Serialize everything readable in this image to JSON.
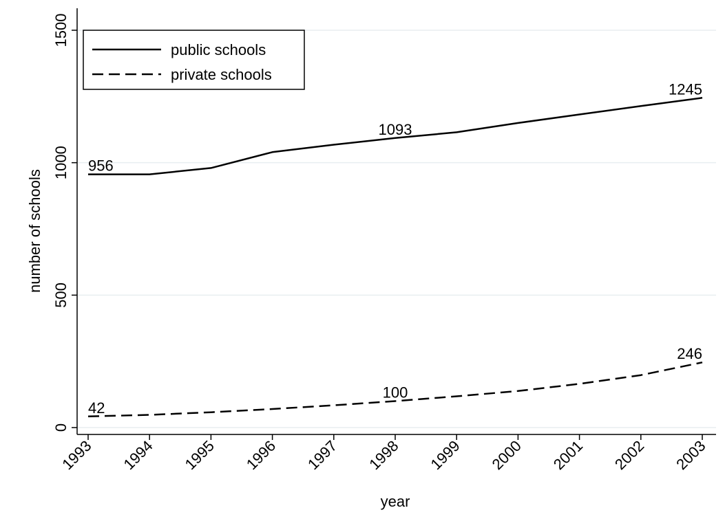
{
  "chart_data": {
    "type": "line",
    "title": "",
    "xlabel": "year",
    "ylabel": "number of schools",
    "x": [
      "1993",
      "1994",
      "1995",
      "1996",
      "1997",
      "1998",
      "1999",
      "2000",
      "2001",
      "2002",
      "2003"
    ],
    "ylim": [
      0,
      1500
    ],
    "yticks": [
      "0",
      "500",
      "1000",
      "1500"
    ],
    "grid": true,
    "legend_position": "top-left",
    "series": [
      {
        "name": "public schools",
        "style": "solid",
        "color": "#000000",
        "values": [
          956,
          956,
          980,
          1040,
          1068,
          1093,
          1115,
          1150,
          1182,
          1214,
          1245
        ]
      },
      {
        "name": "private schools",
        "style": "dashed",
        "color": "#000000",
        "values": [
          42,
          48,
          58,
          70,
          84,
          100,
          118,
          138,
          165,
          198,
          246
        ]
      }
    ],
    "annotations": [
      {
        "series": 0,
        "x": "1993",
        "text": "956"
      },
      {
        "series": 0,
        "x": "1998",
        "text": "1093"
      },
      {
        "series": 0,
        "x": "2003",
        "text": "1245"
      },
      {
        "series": 1,
        "x": "1993",
        "text": "42"
      },
      {
        "series": 1,
        "x": "1998",
        "text": "100"
      },
      {
        "series": 1,
        "x": "2003",
        "text": "246"
      }
    ],
    "gridline_color": "#e8eef0"
  }
}
